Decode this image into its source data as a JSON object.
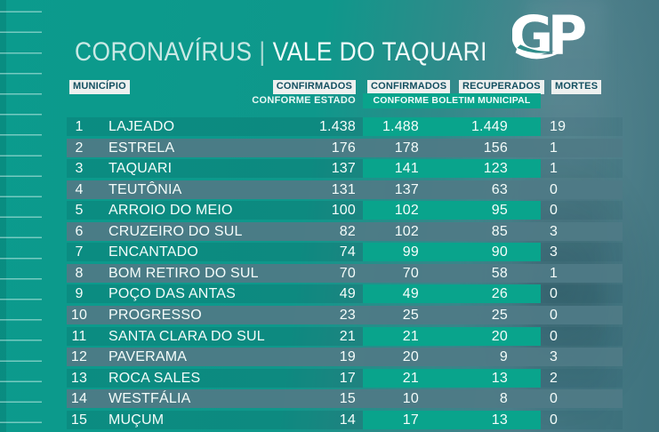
{
  "page": {
    "title_left": "CORONAVÍRUS",
    "title_separator": "|",
    "title_right": "VALE DO TAQUARI",
    "logo_text": "GP"
  },
  "table_header": {
    "municipio": "MUNICÍPIO",
    "confirmados_estado": "CONFIRMADOS",
    "confirmados_estado_sub": "CONFORME ESTADO",
    "confirmados_municipal": "CONFIRMADOS",
    "recuperados": "RECUPERADOS",
    "municipal_sub": "CONFORME BOLETIM MUNICIPAL",
    "mortes": "MORTES"
  },
  "colors": {
    "teal_bright": "#0b9b8d",
    "teal_muted": "#3f737e",
    "green_band": "#09a48c",
    "gray_row": "#4f7a86",
    "chip_bg": "#edf0ef",
    "chip_text": "#134f60"
  },
  "chart_data": {
    "type": "table",
    "title": "CORONAVÍRUS | VALE DO TAQUARI",
    "columns": [
      "MUNICÍPIO",
      "CONFIRMADOS CONFORME ESTADO",
      "CONFIRMADOS CONFORME BOLETIM MUNICIPAL",
      "RECUPERADOS CONFORME BOLETIM MUNICIPAL",
      "MORTES"
    ],
    "rows": [
      {
        "rank": "1",
        "municipio": "LAJEADO",
        "confirmados_estado": "1.438",
        "confirmados_municipal": "1.488",
        "recuperados": "1.449",
        "mortes": "19"
      },
      {
        "rank": "2",
        "municipio": "ESTRELA",
        "confirmados_estado": "176",
        "confirmados_municipal": "178",
        "recuperados": "156",
        "mortes": "1"
      },
      {
        "rank": "3",
        "municipio": "TAQUARI",
        "confirmados_estado": "137",
        "confirmados_municipal": "141",
        "recuperados": "123",
        "mortes": "1"
      },
      {
        "rank": "4",
        "municipio": "TEUTÔNIA",
        "confirmados_estado": "131",
        "confirmados_municipal": "137",
        "recuperados": "63",
        "mortes": "0"
      },
      {
        "rank": "5",
        "municipio": "ARROIO DO MEIO",
        "confirmados_estado": "100",
        "confirmados_municipal": "102",
        "recuperados": "95",
        "mortes": "0"
      },
      {
        "rank": "6",
        "municipio": "CRUZEIRO DO SUL",
        "confirmados_estado": "82",
        "confirmados_municipal": "102",
        "recuperados": "85",
        "mortes": "3"
      },
      {
        "rank": "7",
        "municipio": "ENCANTADO",
        "confirmados_estado": "74",
        "confirmados_municipal": "99",
        "recuperados": "90",
        "mortes": "3"
      },
      {
        "rank": "8",
        "municipio": "BOM RETIRO DO SUL",
        "confirmados_estado": "70",
        "confirmados_municipal": "70",
        "recuperados": "58",
        "mortes": "1"
      },
      {
        "rank": "9",
        "municipio": "POÇO DAS ANTAS",
        "confirmados_estado": "49",
        "confirmados_municipal": "49",
        "recuperados": "26",
        "mortes": "0"
      },
      {
        "rank": "10",
        "municipio": "PROGRESSO",
        "confirmados_estado": "23",
        "confirmados_municipal": "25",
        "recuperados": "25",
        "mortes": "0"
      },
      {
        "rank": "11",
        "municipio": "SANTA CLARA DO SUL",
        "confirmados_estado": "21",
        "confirmados_municipal": "21",
        "recuperados": "20",
        "mortes": "0"
      },
      {
        "rank": "12",
        "municipio": "PAVERAMA",
        "confirmados_estado": "19",
        "confirmados_municipal": "20",
        "recuperados": "9",
        "mortes": "3"
      },
      {
        "rank": "13",
        "municipio": "ROCA SALES",
        "confirmados_estado": "17",
        "confirmados_municipal": "21",
        "recuperados": "13",
        "mortes": "2"
      },
      {
        "rank": "14",
        "municipio": "WESTFÁLIA",
        "confirmados_estado": "15",
        "confirmados_municipal": "10",
        "recuperados": "8",
        "mortes": "0"
      },
      {
        "rank": "15",
        "municipio": "MUÇUM",
        "confirmados_estado": "14",
        "confirmados_municipal": "17",
        "recuperados": "13",
        "mortes": "0"
      }
    ]
  }
}
